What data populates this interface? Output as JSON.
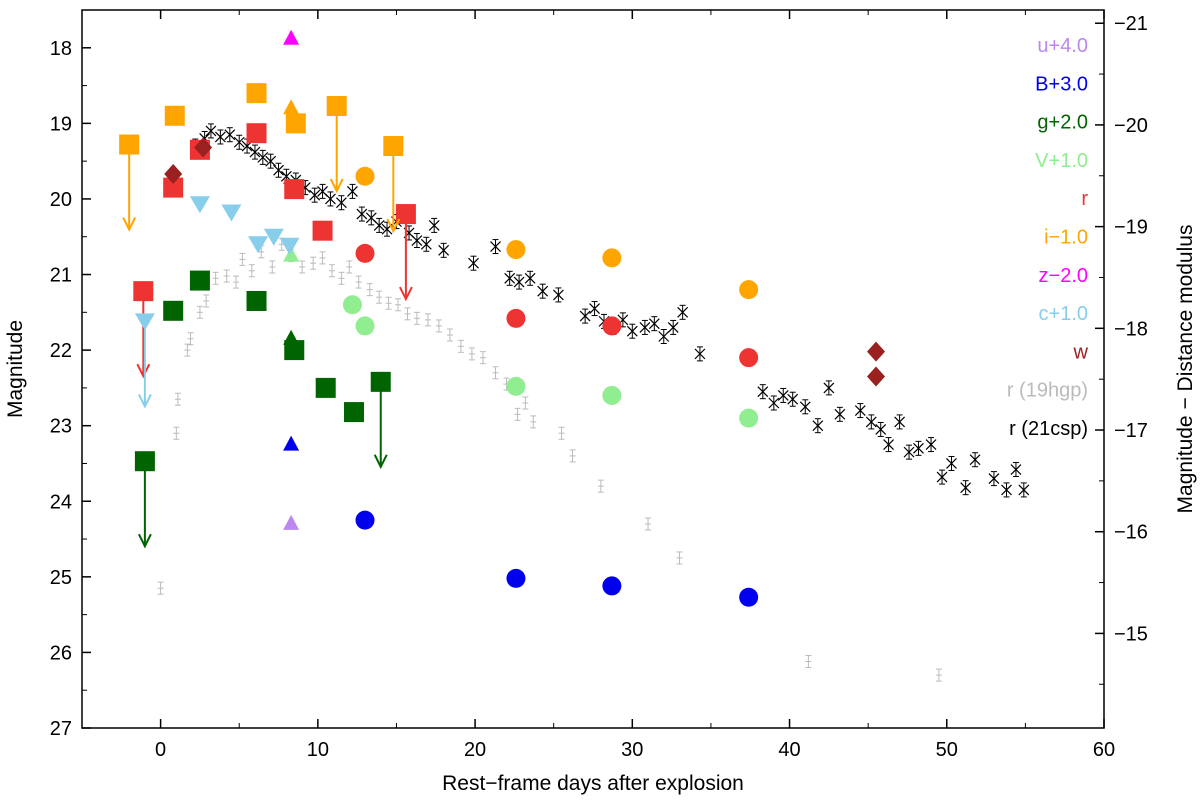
{
  "chart_data": {
    "type": "scatter",
    "xlabel": "Rest−frame days after explosion",
    "ylabel": "Magnitude",
    "y2label": "Magnitude − Distance modulus",
    "xlim": [
      -5,
      60
    ],
    "ylim": [
      27,
      17.5
    ],
    "y2lim": [
      -14.07,
      -21.13
    ],
    "x_ticks": [
      "0",
      "10",
      "20",
      "30",
      "40",
      "50",
      "60"
    ],
    "y_ticks": [
      "18",
      "19",
      "20",
      "21",
      "22",
      "23",
      "24",
      "25",
      "26",
      "27"
    ],
    "y2_ticks": [
      "−15",
      "−16",
      "−17",
      "−18",
      "−19",
      "−20",
      "−21"
    ],
    "legend_position": "top-right",
    "legend": [
      {
        "label": "u+4.0",
        "color": "#bb88ee"
      },
      {
        "label": "B+3.0",
        "color": "#0000ee"
      },
      {
        "label": "g+2.0",
        "color": "#006400"
      },
      {
        "label": "V+1.0",
        "color": "#90ee90"
      },
      {
        "label": "r",
        "color": "#ee3333"
      },
      {
        "label": "i−1.0",
        "color": "#ffa500"
      },
      {
        "label": "z−2.0",
        "color": "#ff00ff"
      },
      {
        "label": "c+1.0",
        "color": "#87ceeb"
      },
      {
        "label": "w",
        "color": "#9b2020"
      },
      {
        "label": "r (19hgp)",
        "color": "#bbbbbb"
      },
      {
        "label": "r (21csp)",
        "color": "#000000"
      }
    ],
    "series": [
      {
        "band": "u+4.0",
        "marker": "triangle-up",
        "color": "#bb88ee",
        "points": [
          {
            "x": 8.3,
            "y": 24.3
          }
        ]
      },
      {
        "band": "B+3.0",
        "color": "#0000ee",
        "markers": [
          {
            "marker": "triangle-up",
            "points": [
              {
                "x": 8.3,
                "y": 23.25
              }
            ]
          },
          {
            "marker": "circle",
            "points": [
              {
                "x": 13.0,
                "y": 24.25
              },
              {
                "x": 22.6,
                "y": 25.02
              },
              {
                "x": 28.7,
                "y": 25.12
              },
              {
                "x": 37.4,
                "y": 25.27
              }
            ]
          }
        ]
      },
      {
        "band": "g+2.0",
        "color": "#006400",
        "markers": [
          {
            "marker": "square",
            "points": [
              {
                "x": -1.0,
                "y": 23.47
              },
              {
                "x": 0.8,
                "y": 21.48
              },
              {
                "x": 2.5,
                "y": 21.08
              },
              {
                "x": 6.1,
                "y": 21.35
              },
              {
                "x": 8.5,
                "y": 22.0
              },
              {
                "x": 10.5,
                "y": 22.5
              },
              {
                "x": 12.3,
                "y": 22.82
              },
              {
                "x": 14.0,
                "y": 22.42
              }
            ]
          },
          {
            "marker": "triangle-up",
            "points": [
              {
                "x": 8.3,
                "y": 21.85
              }
            ]
          }
        ],
        "upper_limits": [
          {
            "x": -1.0,
            "y": 23.47
          },
          {
            "x": 14.0,
            "y": 22.42
          }
        ]
      },
      {
        "band": "V+1.0",
        "color": "#90ee90",
        "markers": [
          {
            "marker": "triangle-up",
            "points": [
              {
                "x": 8.3,
                "y": 20.75
              }
            ]
          },
          {
            "marker": "circle",
            "points": [
              {
                "x": 12.2,
                "y": 21.4
              },
              {
                "x": 13.0,
                "y": 21.68
              },
              {
                "x": 22.6,
                "y": 22.48
              },
              {
                "x": 28.7,
                "y": 22.6
              },
              {
                "x": 37.4,
                "y": 22.9
              }
            ]
          }
        ]
      },
      {
        "band": "r",
        "color": "#ee3333",
        "markers": [
          {
            "marker": "square",
            "points": [
              {
                "x": -1.1,
                "y": 21.22
              },
              {
                "x": 0.8,
                "y": 19.85
              },
              {
                "x": 2.5,
                "y": 19.35
              },
              {
                "x": 6.1,
                "y": 19.13
              },
              {
                "x": 8.5,
                "y": 19.87
              },
              {
                "x": 10.3,
                "y": 20.42
              },
              {
                "x": 15.6,
                "y": 20.2
              }
            ]
          },
          {
            "marker": "circle",
            "points": [
              {
                "x": 13.0,
                "y": 20.72
              },
              {
                "x": 22.6,
                "y": 21.58
              },
              {
                "x": 28.7,
                "y": 21.68
              },
              {
                "x": 37.4,
                "y": 22.1
              }
            ]
          }
        ],
        "upper_limits": [
          {
            "x": -1.1,
            "y": 21.22
          },
          {
            "x": 15.6,
            "y": 20.2
          }
        ]
      },
      {
        "band": "i−1.0",
        "color": "#ffa500",
        "markers": [
          {
            "marker": "square",
            "points": [
              {
                "x": -2.0,
                "y": 19.28
              },
              {
                "x": 0.9,
                "y": 18.9
              },
              {
                "x": 6.1,
                "y": 18.6
              },
              {
                "x": 8.6,
                "y": 19.0
              },
              {
                "x": 11.2,
                "y": 18.77
              },
              {
                "x": 14.8,
                "y": 19.3
              }
            ]
          },
          {
            "marker": "triangle-up",
            "points": [
              {
                "x": 8.3,
                "y": 18.8
              }
            ]
          },
          {
            "marker": "circle",
            "points": [
              {
                "x": 13.0,
                "y": 19.7
              },
              {
                "x": 22.6,
                "y": 20.67
              },
              {
                "x": 28.7,
                "y": 20.78
              },
              {
                "x": 37.4,
                "y": 21.2
              }
            ]
          }
        ],
        "upper_limits": [
          {
            "x": -2.0,
            "y": 19.28
          },
          {
            "x": 11.2,
            "y": 18.77
          },
          {
            "x": 14.8,
            "y": 19.3
          }
        ]
      },
      {
        "band": "z−2.0",
        "marker": "triangle-up",
        "color": "#ff00ff",
        "points": [
          {
            "x": 8.3,
            "y": 17.88
          }
        ]
      },
      {
        "band": "c+1.0",
        "marker": "triangle-down",
        "color": "#87ceeb",
        "points": [
          {
            "x": -1.0,
            "y": 21.62
          },
          {
            "x": 2.5,
            "y": 20.07
          },
          {
            "x": 4.5,
            "y": 20.18
          },
          {
            "x": 6.2,
            "y": 20.6
          },
          {
            "x": 7.2,
            "y": 20.5
          },
          {
            "x": 8.2,
            "y": 20.62
          }
        ],
        "upper_limits": [
          {
            "x": -1.0,
            "y": 21.62
          }
        ]
      },
      {
        "band": "w",
        "marker": "diamond",
        "color": "#9b2020",
        "points": [
          {
            "x": 0.8,
            "y": 19.67
          },
          {
            "x": 2.7,
            "y": 19.32
          },
          {
            "x": 45.5,
            "y": 22.02
          },
          {
            "x": 45.5,
            "y": 22.35
          }
        ]
      },
      {
        "band": "r (19hgp)",
        "marker": "errorbar",
        "color": "#bbbbbb",
        "points": [
          {
            "x": 0.0,
            "y": 25.15
          },
          {
            "x": 1.1,
            "y": 22.65
          },
          {
            "x": 1.0,
            "y": 23.1
          },
          {
            "x": 1.7,
            "y": 22.0
          },
          {
            "x": 1.9,
            "y": 21.85
          },
          {
            "x": 2.5,
            "y": 21.5
          },
          {
            "x": 2.9,
            "y": 21.35
          },
          {
            "x": 3.5,
            "y": 21.05
          },
          {
            "x": 4.2,
            "y": 21.02
          },
          {
            "x": 4.8,
            "y": 21.1
          },
          {
            "x": 5.2,
            "y": 20.8
          },
          {
            "x": 5.8,
            "y": 20.95
          },
          {
            "x": 6.4,
            "y": 20.7
          },
          {
            "x": 7.1,
            "y": 20.9
          },
          {
            "x": 7.7,
            "y": 20.6
          },
          {
            "x": 8.3,
            "y": 20.75
          },
          {
            "x": 9.0,
            "y": 20.9
          },
          {
            "x": 9.7,
            "y": 20.85
          },
          {
            "x": 10.3,
            "y": 20.78
          },
          {
            "x": 10.9,
            "y": 20.95
          },
          {
            "x": 11.5,
            "y": 21.05
          },
          {
            "x": 12.0,
            "y": 20.9
          },
          {
            "x": 12.6,
            "y": 21.1
          },
          {
            "x": 13.3,
            "y": 21.2
          },
          {
            "x": 13.9,
            "y": 21.3
          },
          {
            "x": 14.5,
            "y": 21.38
          },
          {
            "x": 15.1,
            "y": 21.4
          },
          {
            "x": 15.7,
            "y": 21.52
          },
          {
            "x": 16.3,
            "y": 21.58
          },
          {
            "x": 17.0,
            "y": 21.6
          },
          {
            "x": 17.7,
            "y": 21.68
          },
          {
            "x": 18.4,
            "y": 21.8
          },
          {
            "x": 19.1,
            "y": 21.95
          },
          {
            "x": 19.8,
            "y": 22.05
          },
          {
            "x": 20.5,
            "y": 22.1
          },
          {
            "x": 21.3,
            "y": 22.3
          },
          {
            "x": 22.0,
            "y": 22.45
          },
          {
            "x": 22.7,
            "y": 22.85
          },
          {
            "x": 23.2,
            "y": 22.7
          },
          {
            "x": 23.7,
            "y": 22.95
          },
          {
            "x": 25.5,
            "y": 23.1
          },
          {
            "x": 26.2,
            "y": 23.4
          },
          {
            "x": 28.0,
            "y": 23.8
          },
          {
            "x": 31.0,
            "y": 24.3
          },
          {
            "x": 33.0,
            "y": 24.75
          },
          {
            "x": 41.2,
            "y": 26.12
          },
          {
            "x": 49.5,
            "y": 26.3
          }
        ]
      },
      {
        "band": "r (21csp)",
        "marker": "cross",
        "color": "#000000",
        "points": [
          {
            "x": 2.2,
            "y": 19.3
          },
          {
            "x": 2.8,
            "y": 19.2
          },
          {
            "x": 3.2,
            "y": 19.1
          },
          {
            "x": 3.8,
            "y": 19.18
          },
          {
            "x": 4.4,
            "y": 19.15
          },
          {
            "x": 5.0,
            "y": 19.25
          },
          {
            "x": 5.5,
            "y": 19.3
          },
          {
            "x": 6.0,
            "y": 19.38
          },
          {
            "x": 6.5,
            "y": 19.45
          },
          {
            "x": 7.0,
            "y": 19.5
          },
          {
            "x": 7.5,
            "y": 19.62
          },
          {
            "x": 8.0,
            "y": 19.7
          },
          {
            "x": 8.6,
            "y": 19.75
          },
          {
            "x": 9.2,
            "y": 19.85
          },
          {
            "x": 9.8,
            "y": 19.95
          },
          {
            "x": 10.3,
            "y": 19.9
          },
          {
            "x": 10.8,
            "y": 20.0
          },
          {
            "x": 11.5,
            "y": 20.05
          },
          {
            "x": 12.2,
            "y": 19.9
          },
          {
            "x": 12.8,
            "y": 20.2
          },
          {
            "x": 13.4,
            "y": 20.25
          },
          {
            "x": 13.9,
            "y": 20.35
          },
          {
            "x": 14.4,
            "y": 20.4
          },
          {
            "x": 15.0,
            "y": 20.3
          },
          {
            "x": 15.8,
            "y": 20.45
          },
          {
            "x": 16.3,
            "y": 20.55
          },
          {
            "x": 16.9,
            "y": 20.6
          },
          {
            "x": 17.4,
            "y": 20.35
          },
          {
            "x": 18.0,
            "y": 20.68
          },
          {
            "x": 19.9,
            "y": 20.85
          },
          {
            "x": 21.3,
            "y": 20.63
          },
          {
            "x": 22.2,
            "y": 21.05
          },
          {
            "x": 22.8,
            "y": 21.1
          },
          {
            "x": 23.5,
            "y": 21.05
          },
          {
            "x": 24.3,
            "y": 21.22
          },
          {
            "x": 25.3,
            "y": 21.27
          },
          {
            "x": 27.0,
            "y": 21.55
          },
          {
            "x": 27.6,
            "y": 21.45
          },
          {
            "x": 28.2,
            "y": 21.62
          },
          {
            "x": 28.8,
            "y": 21.7
          },
          {
            "x": 29.4,
            "y": 21.6
          },
          {
            "x": 30.0,
            "y": 21.75
          },
          {
            "x": 30.8,
            "y": 21.7
          },
          {
            "x": 31.4,
            "y": 21.65
          },
          {
            "x": 32.0,
            "y": 21.82
          },
          {
            "x": 32.6,
            "y": 21.7
          },
          {
            "x": 33.2,
            "y": 21.5
          },
          {
            "x": 34.3,
            "y": 22.05
          },
          {
            "x": 38.3,
            "y": 22.55
          },
          {
            "x": 39.0,
            "y": 22.7
          },
          {
            "x": 39.6,
            "y": 22.6
          },
          {
            "x": 40.2,
            "y": 22.65
          },
          {
            "x": 41.0,
            "y": 22.75
          },
          {
            "x": 41.8,
            "y": 23.0
          },
          {
            "x": 42.5,
            "y": 22.5
          },
          {
            "x": 43.2,
            "y": 22.85
          },
          {
            "x": 44.5,
            "y": 22.8
          },
          {
            "x": 45.2,
            "y": 22.95
          },
          {
            "x": 45.8,
            "y": 23.05
          },
          {
            "x": 46.3,
            "y": 23.25
          },
          {
            "x": 47.0,
            "y": 22.95
          },
          {
            "x": 47.6,
            "y": 23.35
          },
          {
            "x": 48.2,
            "y": 23.3
          },
          {
            "x": 49.0,
            "y": 23.25
          },
          {
            "x": 49.7,
            "y": 23.68
          },
          {
            "x": 50.3,
            "y": 23.5
          },
          {
            "x": 51.2,
            "y": 23.82
          },
          {
            "x": 51.8,
            "y": 23.45
          },
          {
            "x": 53.0,
            "y": 23.7
          },
          {
            "x": 53.8,
            "y": 23.85
          },
          {
            "x": 54.4,
            "y": 23.58
          },
          {
            "x": 54.9,
            "y": 23.85
          }
        ]
      }
    ]
  }
}
